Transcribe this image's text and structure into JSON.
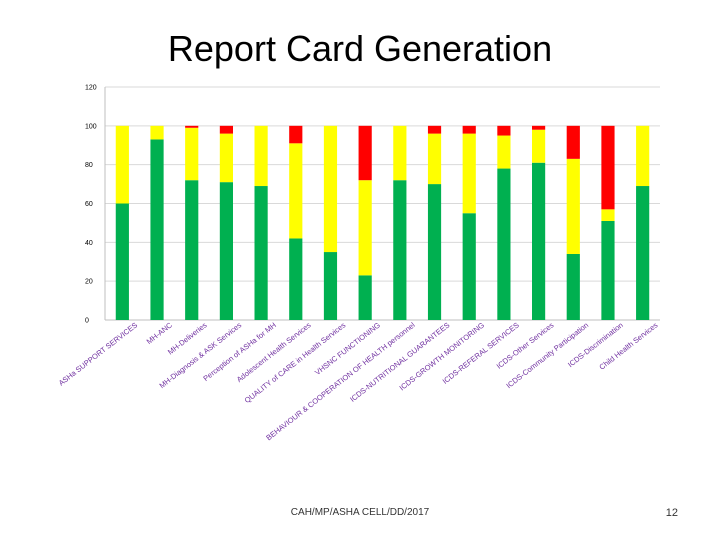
{
  "slide": {
    "title": "Report Card Generation",
    "footer": "CAH/MP/ASHA CELL/DD/2017",
    "page_number": "12"
  },
  "colors": {
    "green": "#00b050",
    "yellow": "#ffff00",
    "red": "#ff0000",
    "label": "#7030a0",
    "grid": "#d9d9d9"
  },
  "chart_data": {
    "type": "bar",
    "stacked": true,
    "title": "",
    "xlabel": "",
    "ylabel": "",
    "ylim": [
      0,
      120
    ],
    "yticks": [
      0,
      20,
      40,
      60,
      80,
      100,
      120
    ],
    "grid": true,
    "categories": [
      "ASHa SUPPORT SERVICES",
      "MH-ANC",
      "MH-Deliveries",
      "MH-Diagnosis & ASK Services",
      "Perception of ASHa for MH",
      "Adolescent Health Services",
      "QUALITY of CARE in Health Services",
      "VHSNC FUNCTIONING",
      "BEHAVIOUR & COOPERATION OF HEALTH personnel",
      "ICDS-NUTRITIONAL GUARANTEES",
      "ICDS-GROWTH MONITORING",
      "ICDS-REFERAL SERVICES",
      "ICDS-Other Services",
      "ICDS-Community Participation",
      "ICDS-Discrimination",
      "Child Health Services"
    ],
    "series": [
      {
        "name": "Green",
        "values": [
          60,
          93,
          72,
          71,
          69,
          42,
          35,
          23,
          72,
          70,
          55,
          78,
          81,
          34,
          51,
          69
        ]
      },
      {
        "name": "Yellow",
        "values": [
          40,
          7,
          27,
          25,
          31,
          49,
          65,
          49,
          28,
          26,
          41,
          17,
          17,
          49,
          6,
          31
        ]
      },
      {
        "name": "Red",
        "values": [
          0,
          0,
          1,
          4,
          0,
          9,
          0,
          28,
          0,
          4,
          4,
          5,
          2,
          17,
          43,
          0
        ]
      }
    ]
  }
}
